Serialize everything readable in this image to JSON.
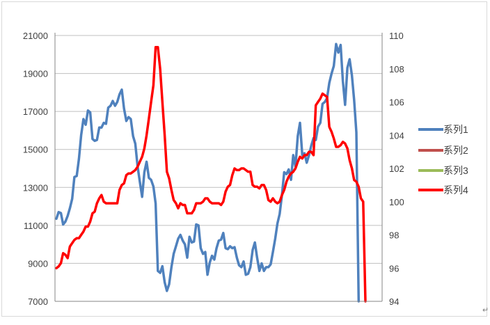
{
  "chart_data": {
    "type": "line",
    "title": "",
    "xlabel": "",
    "ylabel": "",
    "y_left": {
      "range": [
        7000,
        21000
      ],
      "ticks": [
        "21000",
        "19000",
        "17000",
        "15000",
        "13000",
        "11000",
        "9000",
        "7000"
      ]
    },
    "y_right": {
      "range": [
        94,
        110
      ],
      "ticks": [
        "110",
        "108",
        "106",
        "104",
        "102",
        "100",
        "98",
        "96",
        "94"
      ]
    },
    "grid": true,
    "legend_placement": "right",
    "series": [
      {
        "name": "系列1",
        "axis": "left",
        "color": "#4f81bd",
        "values": [
          11350,
          11700,
          11650,
          11050,
          11200,
          11500,
          11900,
          12400,
          13550,
          13600,
          14500,
          15750,
          16600,
          16300,
          17050,
          16950,
          15550,
          15450,
          15500,
          16150,
          16150,
          16400,
          16350,
          17200,
          17300,
          17550,
          17300,
          17500,
          17900,
          18150,
          17150,
          16500,
          16700,
          16600,
          15700,
          15300,
          14100,
          13300,
          12500,
          13800,
          14350,
          13500,
          13400,
          13050,
          12150,
          8600,
          8500,
          8850,
          8000,
          7550,
          7900,
          8800,
          9500,
          9900,
          10300,
          10500,
          10200,
          10000,
          9300,
          10400,
          10100,
          10150,
          11050,
          11000,
          9800,
          9500,
          9600,
          8400,
          9050,
          9400,
          9200,
          9800,
          10200,
          10250,
          10600,
          9800,
          9750,
          9900,
          9800,
          9850,
          9300,
          8900,
          8800,
          9100,
          8400,
          8450,
          8800,
          9700,
          10100,
          9300,
          8600,
          9000,
          8600,
          8800,
          8800,
          8950,
          9600,
          10300,
          11100,
          11600,
          12600,
          13800,
          13700,
          13950,
          13400,
          14700,
          14100,
          15700,
          16400,
          14700,
          14800,
          14300,
          14700,
          15200,
          15600,
          15500,
          16200,
          16400,
          17400,
          17500,
          17700,
          18500,
          19000,
          19400,
          20550,
          20100,
          20500,
          18600,
          17350,
          19300,
          19750,
          18900,
          17600,
          15900,
          7000
        ]
      },
      {
        "name": "系列2",
        "axis": "right",
        "color": "#c0504d",
        "values": []
      },
      {
        "name": "系列3",
        "axis": "right",
        "color": "#9bbb59",
        "values": []
      },
      {
        "name": "系列4",
        "axis": "right",
        "color": "#ff0000",
        "values": [
          96.0,
          96.1,
          96.3,
          96.9,
          96.8,
          96.6,
          97.3,
          97.5,
          97.7,
          97.8,
          97.8,
          98.0,
          98.2,
          98.5,
          98.5,
          98.8,
          99.3,
          99.4,
          99.9,
          100.2,
          100.4,
          100.0,
          99.9,
          99.9,
          99.9,
          99.9,
          99.9,
          99.9,
          100.7,
          101.0,
          101.1,
          101.6,
          101.7,
          101.7,
          101.8,
          101.9,
          102.1,
          102.4,
          102.7,
          103.2,
          104.0,
          105.0,
          106.0,
          107.0,
          109.3,
          109.3,
          108.0,
          106.0,
          104.0,
          101.8,
          101.4,
          100.7,
          100.1,
          99.9,
          99.6,
          99.9,
          99.8,
          99.8,
          99.3,
          99.3,
          99.3,
          99.5,
          99.9,
          99.9,
          99.9,
          100.0,
          100.2,
          100.2,
          100.0,
          99.9,
          99.9,
          99.9,
          99.9,
          99.8,
          100.0,
          100.6,
          100.9,
          101.0,
          101.6,
          102.0,
          101.9,
          101.9,
          102.0,
          102.0,
          101.9,
          101.8,
          101.8,
          101.0,
          100.9,
          100.9,
          100.8,
          101.0,
          101.0,
          100.7,
          100.1,
          100.0,
          100.2,
          100.0,
          99.9,
          100.0,
          100.4,
          100.7,
          101.2,
          101.5,
          101.7,
          101.8,
          102.0,
          102.4,
          102.7,
          102.6,
          102.8,
          102.8,
          103.0,
          103.0,
          102.8,
          105.8,
          106.0,
          106.2,
          106.5,
          106.4,
          106.3,
          104.5,
          104.2,
          103.8,
          103.3,
          103.3,
          103.4,
          103.6,
          103.5,
          103.2,
          102.5,
          102.0,
          101.3,
          101.2,
          100.9,
          100.2,
          100.0,
          94.0
        ]
      }
    ]
  }
}
